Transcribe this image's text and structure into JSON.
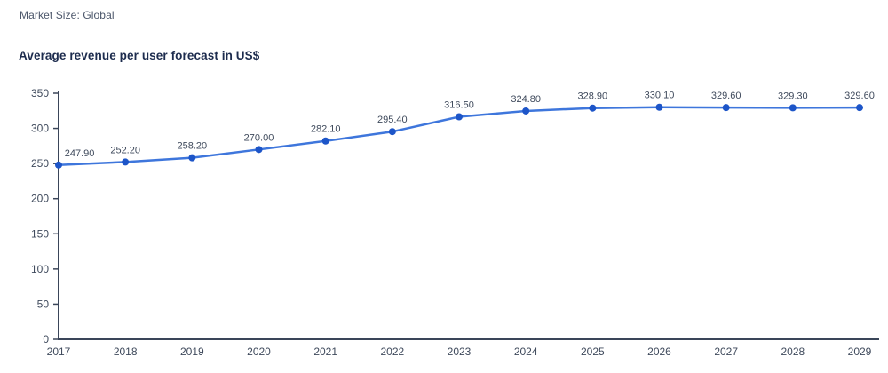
{
  "chart_data": {
    "type": "line",
    "title": "Average revenue per user forecast in US$",
    "subtitle": "Market Size: Global",
    "categories": [
      "2017",
      "2018",
      "2019",
      "2020",
      "2021",
      "2022",
      "2023",
      "2024",
      "2025",
      "2026",
      "2027",
      "2028",
      "2029"
    ],
    "series": [
      {
        "name": "Average revenue per user (US$)",
        "values": [
          247.9,
          252.2,
          258.2,
          270.0,
          282.1,
          295.4,
          316.5,
          324.8,
          328.9,
          330.1,
          329.6,
          329.3,
          329.6
        ],
        "value_labels": [
          "247.90",
          "252.20",
          "258.20",
          "270.00",
          "282.10",
          "295.40",
          "316.50",
          "324.80",
          "328.90",
          "330.10",
          "329.60",
          "329.30",
          "329.60"
        ]
      }
    ],
    "xlabel": "",
    "ylabel": "",
    "ylim": [
      0,
      350
    ],
    "yticks": [
      "0",
      "50",
      "100",
      "150",
      "200",
      "250",
      "300",
      "350"
    ],
    "grid": false,
    "legend_position": "none",
    "colors": {
      "line": "#3e76dc",
      "marker": "#1d55c8",
      "axis": "#3a4559",
      "tick_label": "#3f4a5c",
      "data_label": "#3f4a5c",
      "title_text": "#1d2c4e",
      "subtitle_text": "#4a5569",
      "background": "#ffffff"
    }
  }
}
